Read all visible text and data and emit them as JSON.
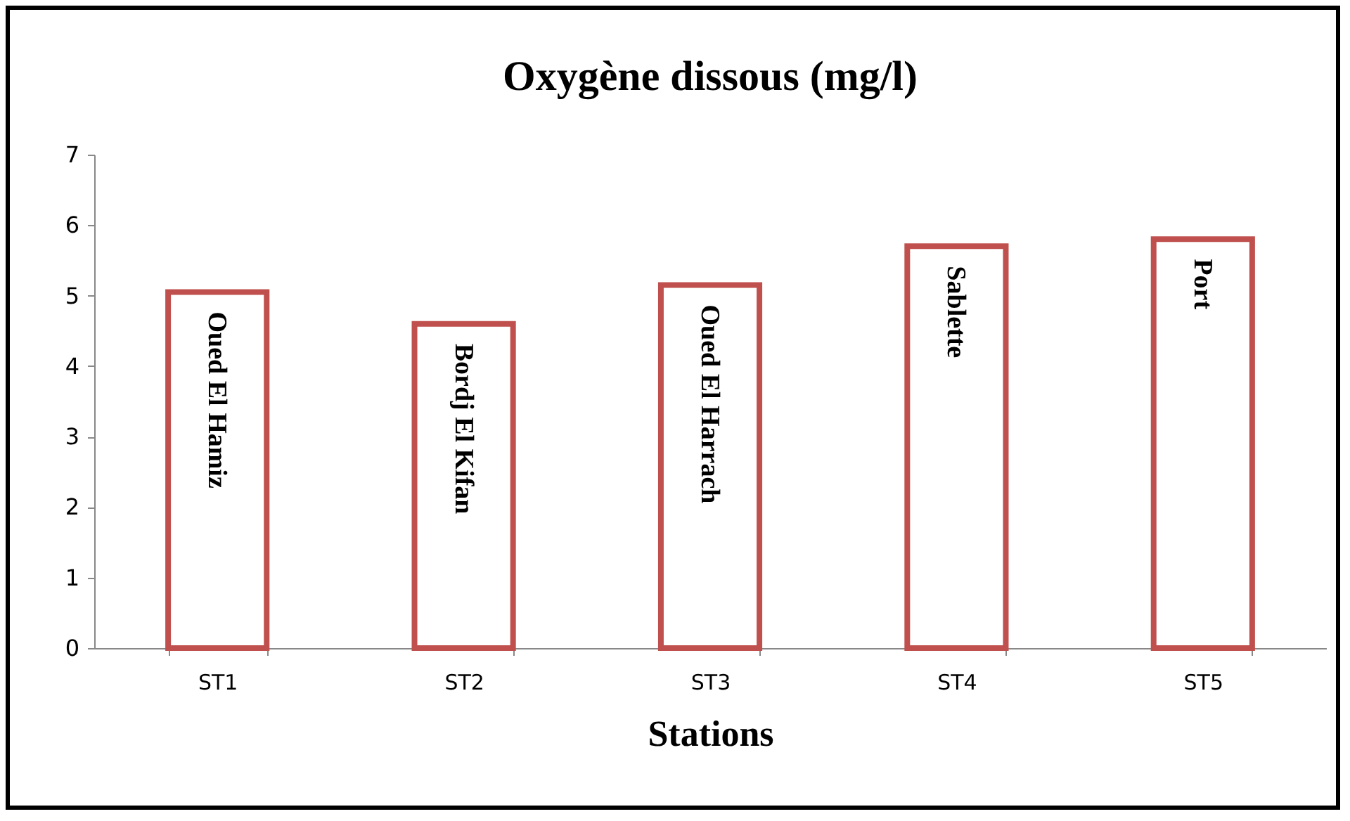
{
  "chart_data": {
    "type": "bar",
    "title": "Oxygène dissous (mg/l)",
    "xlabel": "Stations",
    "categories": [
      "ST1",
      "ST2",
      "ST3",
      "ST4",
      "ST5"
    ],
    "values": [
      5.05,
      4.6,
      5.15,
      5.7,
      5.8
    ],
    "color": "#c0504d",
    "ylim": [
      0,
      7
    ],
    "yticks": [
      0,
      1,
      2,
      3,
      4,
      5,
      6,
      7
    ],
    "grid": false,
    "annotations": [
      "Oued El Hamiz",
      "Bordj El Kifan",
      "Oued El Harrach",
      "Sablette",
      "Port"
    ]
  }
}
